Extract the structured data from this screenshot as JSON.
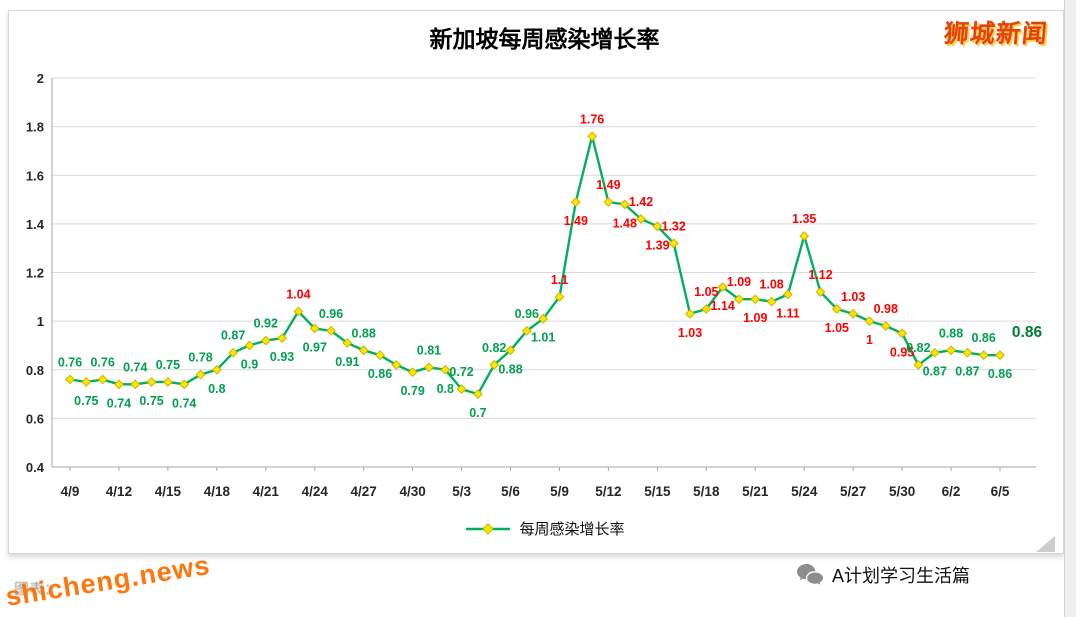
{
  "watermarks": {
    "top_right": "狮城新闻",
    "bottom_left": "shicheng.news",
    "caption_fragment": "图表：",
    "footer_account": "A计划学习生活篇"
  },
  "chart_data": {
    "type": "line",
    "title": "新加坡每周感染增长率",
    "legend_label": "每周感染增长率",
    "x_tick_labels": [
      "4/9",
      "4/12",
      "4/15",
      "4/18",
      "4/21",
      "4/24",
      "4/27",
      "4/30",
      "5/3",
      "5/6",
      "5/9",
      "5/12",
      "5/15",
      "5/18",
      "5/21",
      "5/24",
      "5/27",
      "5/30",
      "6/2",
      "6/5"
    ],
    "tick_every": 3,
    "y_tick_labels": [
      "0.4",
      "0.6",
      "0.8",
      "1",
      "1.2",
      "1.4",
      "1.6",
      "1.8",
      "2"
    ],
    "ylim": [
      0.4,
      2
    ],
    "end_label": "0.86",
    "colors": {
      "line": "#00b05c",
      "marker_fill": "#ffe600",
      "marker_edge": "#c7b500",
      "label_green": "#00a050",
      "label_red": "#fe0000",
      "end_label_color": "#007d32",
      "grid": "#d9d9d9",
      "axis": "#a6a6a6",
      "axis_text": "#262626"
    },
    "series": [
      {
        "name": "每周感染增长率",
        "values": [
          0.76,
          0.75,
          0.76,
          0.74,
          0.74,
          0.75,
          0.75,
          0.74,
          0.78,
          0.8,
          0.87,
          0.9,
          0.92,
          0.93,
          1.04,
          0.97,
          0.96,
          0.91,
          0.88,
          0.86,
          0.82,
          0.79,
          0.81,
          0.8,
          0.72,
          0.7,
          0.82,
          0.88,
          0.96,
          1.01,
          1.1,
          1.49,
          1.76,
          1.49,
          1.48,
          1.42,
          1.39,
          1.32,
          1.03,
          1.05,
          1.14,
          1.09,
          1.09,
          1.08,
          1.11,
          1.35,
          1.12,
          1.05,
          1.03,
          1,
          0.98,
          0.95,
          0.82,
          0.87,
          0.88,
          0.87,
          0.86,
          0.86
        ],
        "labels": [
          "0.76",
          "0.75",
          "0.76",
          "0.74",
          "0.74",
          "0.75",
          "0.75",
          "0.74",
          "0.78",
          "0.8",
          "0.87",
          "0.9",
          "0.92",
          "0.93",
          "1.04",
          "0.97",
          "0.96",
          "0.91",
          "0.88",
          "0.86",
          "",
          "0.79",
          "0.81",
          "0.8",
          "0.72",
          "0.7",
          "0.82",
          "0.88",
          "0.96",
          "1.01",
          "1.1",
          "1.49",
          "1.76",
          "1.49",
          "1.48",
          "1.42",
          "1.39",
          "1.32",
          "1.03",
          "1.05",
          "1.14",
          "1.09",
          "1.09",
          "1.08",
          "1.11",
          "1.35",
          "1.12",
          "1.05",
          "1.03",
          "1",
          "0.98",
          "0.95",
          "0.82",
          "0.87",
          "0.88",
          "0.87",
          "0.86",
          "0.86"
        ],
        "label_positions": [
          "a",
          "b",
          "a",
          "b",
          "a",
          "b",
          "a",
          "b",
          "a",
          "b",
          "a",
          "b",
          "a",
          "b",
          "a",
          "b",
          "a",
          "b",
          "a",
          "b",
          "a",
          "b",
          "a",
          "b",
          "a",
          "b",
          "a",
          "b",
          "a",
          "b",
          "a",
          "b",
          "a",
          "a",
          "b",
          "a",
          "b",
          "a",
          "b",
          "a",
          "b",
          "a",
          "b",
          "a",
          "b",
          "a",
          "a",
          "b",
          "a",
          "b",
          "a",
          "b",
          "a",
          "b",
          "a",
          "b",
          "a",
          "b"
        ],
        "label_colors": [
          "g",
          "g",
          "g",
          "g",
          "g",
          "g",
          "g",
          "g",
          "g",
          "g",
          "g",
          "g",
          "g",
          "g",
          "r",
          "g",
          "g",
          "g",
          "g",
          "g",
          "g",
          "g",
          "g",
          "g",
          "g",
          "g",
          "g",
          "g",
          "g",
          "g",
          "r",
          "r",
          "r",
          "r",
          "r",
          "r",
          "r",
          "r",
          "r",
          "r",
          "r",
          "r",
          "r",
          "r",
          "r",
          "r",
          "r",
          "r",
          "r",
          "r",
          "r",
          "r",
          "g",
          "g",
          "g",
          "g",
          "g",
          "g"
        ]
      }
    ]
  }
}
